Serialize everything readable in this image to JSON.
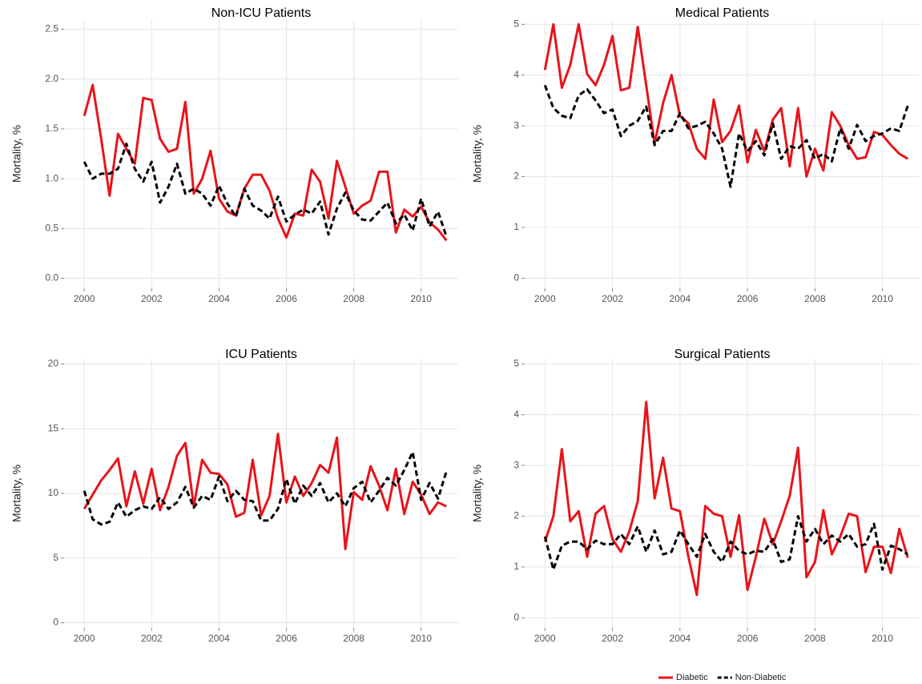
{
  "chart_data": [
    {
      "type": "line",
      "title": "Non-ICU Patients",
      "y_label": "Mortality, %",
      "x": [
        2000,
        2000.25,
        2000.5,
        2000.75,
        2001,
        2001.25,
        2001.5,
        2001.75,
        2002,
        2002.25,
        2002.5,
        2002.75,
        2003,
        2003.25,
        2003.5,
        2003.75,
        2004,
        2004.25,
        2004.5,
        2004.75,
        2005,
        2005.25,
        2005.5,
        2005.75,
        2006,
        2006.25,
        2006.5,
        2006.75,
        2007,
        2007.25,
        2007.5,
        2007.75,
        2008,
        2008.25,
        2008.5,
        2008.75,
        2009,
        2009.25,
        2009.5,
        2009.75,
        2010,
        2010.25,
        2010.5,
        2010.75
      ],
      "series": [
        {
          "name": "Diabetic",
          "color": "#e8141b",
          "dash": "solid",
          "values": [
            1.63,
            1.94,
            1.4,
            0.83,
            1.45,
            1.3,
            1.15,
            1.81,
            1.79,
            1.4,
            1.27,
            1.3,
            1.77,
            0.85,
            1.0,
            1.28,
            0.8,
            0.67,
            0.63,
            0.9,
            1.04,
            1.04,
            0.88,
            0.6,
            0.41,
            0.65,
            0.63,
            1.09,
            0.97,
            0.6,
            1.18,
            0.92,
            0.65,
            0.73,
            0.78,
            1.07,
            1.07,
            0.46,
            0.69,
            0.62,
            0.72,
            0.56,
            0.49,
            0.38
          ]
        },
        {
          "name": "Non-Diabetic",
          "color": "#000000",
          "dash": "dashed",
          "values": [
            1.17,
            1.0,
            1.05,
            1.05,
            1.1,
            1.35,
            1.1,
            0.97,
            1.17,
            0.76,
            0.92,
            1.15,
            0.85,
            0.9,
            0.85,
            0.73,
            0.93,
            0.75,
            0.62,
            0.9,
            0.73,
            0.68,
            0.6,
            0.82,
            0.57,
            0.64,
            0.69,
            0.65,
            0.77,
            0.44,
            0.7,
            0.86,
            0.68,
            0.59,
            0.58,
            0.67,
            0.76,
            0.55,
            0.64,
            0.48,
            0.8,
            0.52,
            0.67,
            0.42
          ]
        }
      ],
      "xlim": [
        1999.4,
        2011.1
      ],
      "xticks": [
        2000,
        2002,
        2004,
        2006,
        2008,
        2010
      ],
      "ylim": [
        -0.1,
        2.6
      ],
      "yticks": [
        {
          "value": 0,
          "label": "0.0"
        },
        0.5,
        {
          "value": 1,
          "label": "1.0"
        },
        1.5,
        {
          "value": 2,
          "label": "2.0"
        },
        2.5
      ],
      "grid": true
    },
    {
      "type": "line",
      "title": "Medical Patients",
      "y_label": "Mortality, %",
      "x": [
        2000,
        2000.25,
        2000.5,
        2000.75,
        2001,
        2001.25,
        2001.5,
        2001.75,
        2002,
        2002.25,
        2002.5,
        2002.75,
        2003,
        2003.25,
        2003.5,
        2003.75,
        2004,
        2004.25,
        2004.5,
        2004.75,
        2005,
        2005.25,
        2005.5,
        2005.75,
        2006,
        2006.25,
        2006.5,
        2006.75,
        2007,
        2007.25,
        2007.5,
        2007.75,
        2008,
        2008.25,
        2008.5,
        2008.75,
        2009,
        2009.25,
        2009.5,
        2009.75,
        2010,
        2010.25,
        2010.5,
        2010.75
      ],
      "series": [
        {
          "name": "Diabetic",
          "color": "#e8141b",
          "dash": "solid",
          "values": [
            4.1,
            5.0,
            3.75,
            4.2,
            5.0,
            4.02,
            3.8,
            4.2,
            4.77,
            3.7,
            3.75,
            4.95,
            3.8,
            2.65,
            3.45,
            4.0,
            3.2,
            3.05,
            2.55,
            2.35,
            3.52,
            2.68,
            2.9,
            3.4,
            2.28,
            2.92,
            2.5,
            3.12,
            3.35,
            2.2,
            3.35,
            2.0,
            2.55,
            2.12,
            3.27,
            3.0,
            2.62,
            2.35,
            2.38,
            2.88,
            2.82,
            2.62,
            2.45,
            2.35
          ]
        },
        {
          "name": "Non-Diabetic",
          "color": "#000000",
          "dash": "dashed",
          "values": [
            3.8,
            3.35,
            3.2,
            3.15,
            3.6,
            3.72,
            3.5,
            3.25,
            3.32,
            2.8,
            3.0,
            3.1,
            3.38,
            2.62,
            2.9,
            2.9,
            3.25,
            2.95,
            3.0,
            3.08,
            2.85,
            2.55,
            1.8,
            2.85,
            2.5,
            2.7,
            2.42,
            3.05,
            2.35,
            2.6,
            2.55,
            2.72,
            2.35,
            2.45,
            2.3,
            2.95,
            2.55,
            3.02,
            2.7,
            2.8,
            2.85,
            2.95,
            2.9,
            3.4
          ]
        }
      ],
      "xlim": [
        1999.4,
        2011.1
      ],
      "xticks": [
        2000,
        2002,
        2004,
        2006,
        2008,
        2010
      ],
      "ylim": [
        -0.2,
        5.1
      ],
      "yticks": [
        0,
        1,
        2,
        3,
        4,
        5
      ],
      "grid": true
    },
    {
      "type": "line",
      "title": "ICU Patients",
      "y_label": "Mortality, %",
      "x": [
        2000,
        2000.25,
        2000.5,
        2000.75,
        2001,
        2001.25,
        2001.5,
        2001.75,
        2002,
        2002.25,
        2002.5,
        2002.75,
        2003,
        2003.25,
        2003.5,
        2003.75,
        2004,
        2004.25,
        2004.5,
        2004.75,
        2005,
        2005.25,
        2005.5,
        2005.75,
        2006,
        2006.25,
        2006.5,
        2006.75,
        2007,
        2007.25,
        2007.5,
        2007.75,
        2008,
        2008.25,
        2008.5,
        2008.75,
        2009,
        2009.25,
        2009.5,
        2009.75,
        2010,
        2010.25,
        2010.5,
        2010.75
      ],
      "series": [
        {
          "name": "Diabetic",
          "color": "#e8141b",
          "dash": "solid",
          "values": [
            8.8,
            9.9,
            11.0,
            11.8,
            12.7,
            9.0,
            11.7,
            9.2,
            11.9,
            8.7,
            10.5,
            12.9,
            13.9,
            9.0,
            12.6,
            11.6,
            11.5,
            10.7,
            8.2,
            8.5,
            12.6,
            8.3,
            9.8,
            14.6,
            9.3,
            11.3,
            9.8,
            10.8,
            12.2,
            11.6,
            14.3,
            5.7,
            10.1,
            9.5,
            12.1,
            10.6,
            8.7,
            11.9,
            8.4,
            10.9,
            9.9,
            8.4,
            9.3,
            9.0
          ]
        },
        {
          "name": "Non-Diabetic",
          "color": "#000000",
          "dash": "dashed",
          "values": [
            10.2,
            8.0,
            7.6,
            7.8,
            9.3,
            8.2,
            8.7,
            9.0,
            8.8,
            9.7,
            8.8,
            9.3,
            10.5,
            8.9,
            9.8,
            9.5,
            11.3,
            9.4,
            10.2,
            9.5,
            9.4,
            7.9,
            7.9,
            8.8,
            11.1,
            9.2,
            10.6,
            9.8,
            10.8,
            9.3,
            10.0,
            9.0,
            10.4,
            10.9,
            9.3,
            10.2,
            11.2,
            10.6,
            11.8,
            13.2,
            9.5,
            10.8,
            9.6,
            11.7
          ]
        }
      ],
      "xlim": [
        1999.4,
        2011.1
      ],
      "xticks": [
        2000,
        2002,
        2004,
        2006,
        2008,
        2010
      ],
      "ylim": [
        -0.4,
        20.4
      ],
      "yticks": [
        0,
        5,
        10,
        15,
        20
      ],
      "grid": true
    },
    {
      "type": "line",
      "title": "Surgical Patients",
      "y_label": "Mortality, %",
      "x": [
        2000,
        2000.25,
        2000.5,
        2000.75,
        2001,
        2001.25,
        2001.5,
        2001.75,
        2002,
        2002.25,
        2002.5,
        2002.75,
        2003,
        2003.25,
        2003.5,
        2003.75,
        2004,
        2004.25,
        2004.5,
        2004.75,
        2005,
        2005.25,
        2005.5,
        2005.75,
        2006,
        2006.25,
        2006.5,
        2006.75,
        2007,
        2007.25,
        2007.5,
        2007.75,
        2008,
        2008.25,
        2008.5,
        2008.75,
        2009,
        2009.25,
        2009.5,
        2009.75,
        2010,
        2010.25,
        2010.5,
        2010.75
      ],
      "series": [
        {
          "name": "Diabetic",
          "color": "#e8141b",
          "dash": "solid",
          "values": [
            1.5,
            2.0,
            3.32,
            1.9,
            2.1,
            1.2,
            2.05,
            2.2,
            1.55,
            1.3,
            1.7,
            2.3,
            4.25,
            2.35,
            3.15,
            2.15,
            2.1,
            1.2,
            0.45,
            2.2,
            2.05,
            2.0,
            1.2,
            2.02,
            0.55,
            1.2,
            1.95,
            1.45,
            1.9,
            2.4,
            3.35,
            0.8,
            1.1,
            2.12,
            1.25,
            1.6,
            2.05,
            2.0,
            0.9,
            1.4,
            1.4,
            0.88,
            1.75,
            1.18
          ]
        },
        {
          "name": "Non-Diabetic",
          "color": "#000000",
          "dash": "dashed",
          "values": [
            1.6,
            0.95,
            1.42,
            1.5,
            1.5,
            1.35,
            1.52,
            1.45,
            1.45,
            1.65,
            1.45,
            1.8,
            1.3,
            1.72,
            1.25,
            1.3,
            1.72,
            1.45,
            1.2,
            1.65,
            1.3,
            1.1,
            1.5,
            1.32,
            1.25,
            1.32,
            1.3,
            1.55,
            1.1,
            1.15,
            2.0,
            1.5,
            1.75,
            1.45,
            1.62,
            1.5,
            1.65,
            1.4,
            1.45,
            1.85,
            0.95,
            1.42,
            1.35,
            1.25
          ]
        }
      ],
      "xlim": [
        1999.4,
        2011.1
      ],
      "xticks": [
        2000,
        2002,
        2004,
        2006,
        2008,
        2010
      ],
      "ylim": [
        -0.2,
        5.1
      ],
      "yticks": [
        0,
        1,
        2,
        3,
        4,
        5
      ],
      "grid": true
    }
  ]
}
